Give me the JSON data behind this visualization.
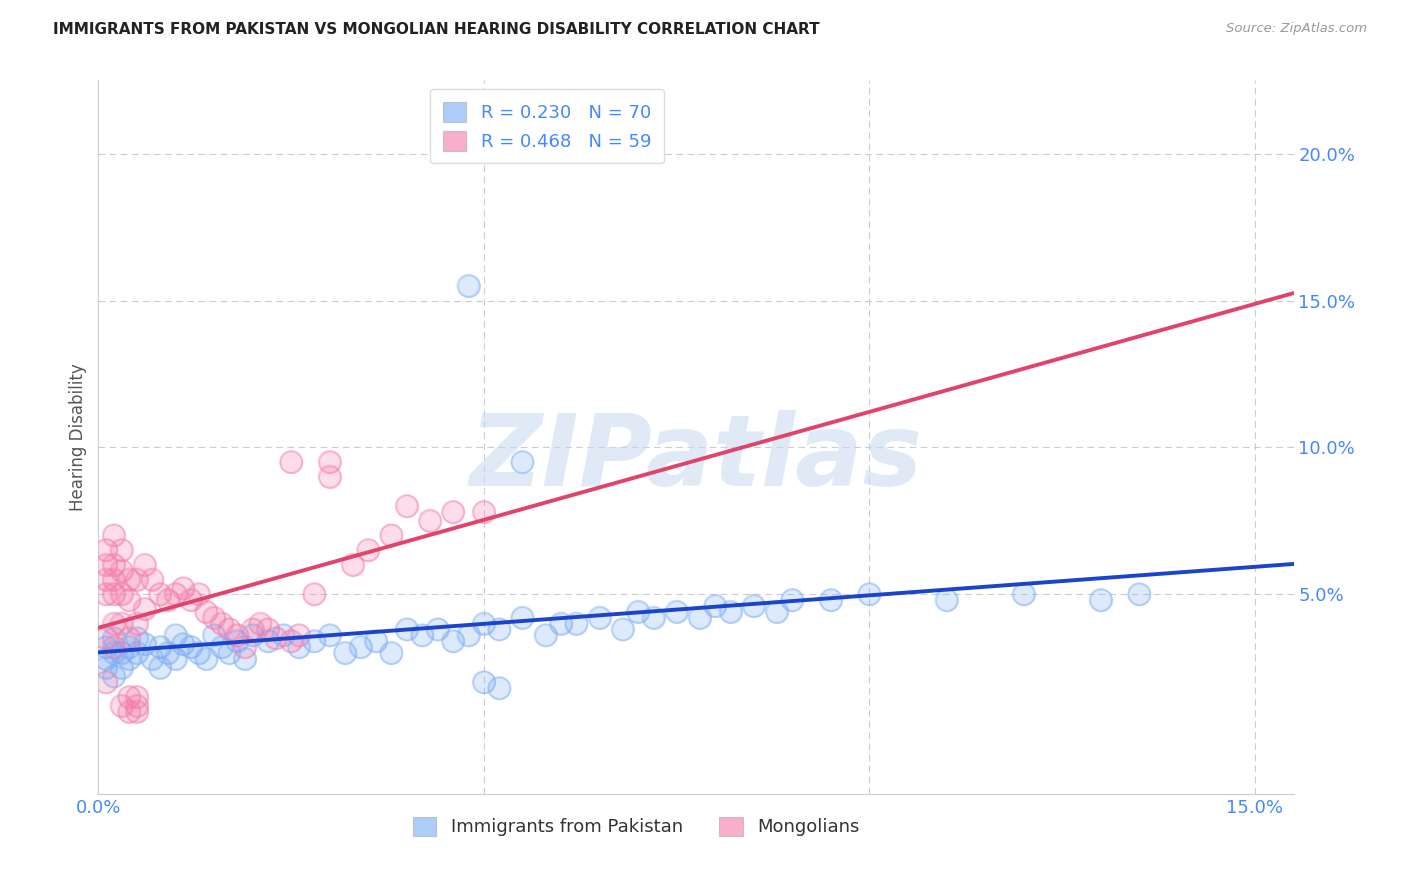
{
  "title": "IMMIGRANTS FROM PAKISTAN VS MONGOLIAN HEARING DISABILITY CORRELATION CHART",
  "source": "Source: ZipAtlas.com",
  "ylabel_label": "Hearing Disability",
  "xlim": [
    0.0,
    0.155
  ],
  "ylim": [
    -0.018,
    0.225
  ],
  "x_ticks": [
    0.0,
    0.05,
    0.1,
    0.15
  ],
  "x_tick_labels_show": [
    "0.0%",
    "",
    "",
    "15.0%"
  ],
  "y_ticks": [
    0.05,
    0.1,
    0.15,
    0.2
  ],
  "y_tick_labels": [
    "5.0%",
    "10.0%",
    "15.0%",
    "20.0%"
  ],
  "pakistan_R": 0.23,
  "pakistan_N": 70,
  "mongolia_R": 0.468,
  "mongolia_N": 59,
  "pakistan_color": "#7aacf5",
  "mongolia_color": "#f57aaa",
  "pakistan_trend_color": "#1a44cc",
  "mongolia_trend_color": "#e0446a",
  "background_color": "#ffffff",
  "grid_color": "#cccccc",
  "watermark_text": "ZIPatlas",
  "label_pakistan": "Immigrants from Pakistan",
  "label_mongolia": "Mongolians",
  "pakistan_points_x": [
    0.001,
    0.001,
    0.001,
    0.002,
    0.002,
    0.002,
    0.003,
    0.003,
    0.004,
    0.004,
    0.005,
    0.005,
    0.006,
    0.007,
    0.008,
    0.008,
    0.009,
    0.01,
    0.01,
    0.011,
    0.012,
    0.013,
    0.014,
    0.015,
    0.016,
    0.017,
    0.018,
    0.019,
    0.02,
    0.022,
    0.024,
    0.026,
    0.028,
    0.03,
    0.032,
    0.034,
    0.036,
    0.038,
    0.04,
    0.042,
    0.044,
    0.046,
    0.048,
    0.05,
    0.052,
    0.055,
    0.058,
    0.06,
    0.062,
    0.065,
    0.068,
    0.07,
    0.072,
    0.075,
    0.078,
    0.08,
    0.082,
    0.085,
    0.088,
    0.09,
    0.095,
    0.1,
    0.11,
    0.12,
    0.13,
    0.135,
    0.048,
    0.05,
    0.052,
    0.055
  ],
  "pakistan_points_y": [
    0.028,
    0.032,
    0.025,
    0.03,
    0.035,
    0.022,
    0.03,
    0.025,
    0.032,
    0.028,
    0.035,
    0.03,
    0.033,
    0.028,
    0.032,
    0.025,
    0.03,
    0.036,
    0.028,
    0.033,
    0.032,
    0.03,
    0.028,
    0.036,
    0.032,
    0.03,
    0.034,
    0.028,
    0.036,
    0.034,
    0.036,
    0.032,
    0.034,
    0.036,
    0.03,
    0.032,
    0.034,
    0.03,
    0.038,
    0.036,
    0.038,
    0.034,
    0.036,
    0.04,
    0.038,
    0.042,
    0.036,
    0.04,
    0.04,
    0.042,
    0.038,
    0.044,
    0.042,
    0.044,
    0.042,
    0.046,
    0.044,
    0.046,
    0.044,
    0.048,
    0.048,
    0.05,
    0.048,
    0.05,
    0.048,
    0.05,
    0.155,
    0.02,
    0.018,
    0.095
  ],
  "mongolia_points_x": [
    0.001,
    0.001,
    0.001,
    0.001,
    0.001,
    0.001,
    0.002,
    0.002,
    0.002,
    0.002,
    0.002,
    0.002,
    0.003,
    0.003,
    0.003,
    0.003,
    0.004,
    0.004,
    0.004,
    0.005,
    0.005,
    0.006,
    0.006,
    0.007,
    0.008,
    0.009,
    0.01,
    0.011,
    0.012,
    0.013,
    0.014,
    0.015,
    0.016,
    0.017,
    0.018,
    0.019,
    0.02,
    0.021,
    0.022,
    0.023,
    0.025,
    0.026,
    0.028,
    0.03,
    0.033,
    0.035,
    0.038,
    0.04,
    0.043,
    0.046,
    0.05,
    0.025,
    0.03,
    0.003,
    0.004,
    0.005,
    0.004,
    0.005,
    0.005
  ],
  "mongolia_points_y": [
    0.06,
    0.065,
    0.055,
    0.05,
    0.035,
    0.02,
    0.07,
    0.06,
    0.055,
    0.05,
    0.04,
    0.032,
    0.065,
    0.058,
    0.05,
    0.04,
    0.055,
    0.048,
    0.035,
    0.055,
    0.04,
    0.06,
    0.045,
    0.055,
    0.05,
    0.048,
    0.05,
    0.052,
    0.048,
    0.05,
    0.044,
    0.042,
    0.04,
    0.038,
    0.036,
    0.032,
    0.038,
    0.04,
    0.038,
    0.035,
    0.034,
    0.036,
    0.05,
    0.09,
    0.06,
    0.065,
    0.07,
    0.08,
    0.075,
    0.078,
    0.078,
    0.095,
    0.095,
    0.012,
    0.01,
    0.01,
    0.015,
    0.015,
    0.012
  ]
}
